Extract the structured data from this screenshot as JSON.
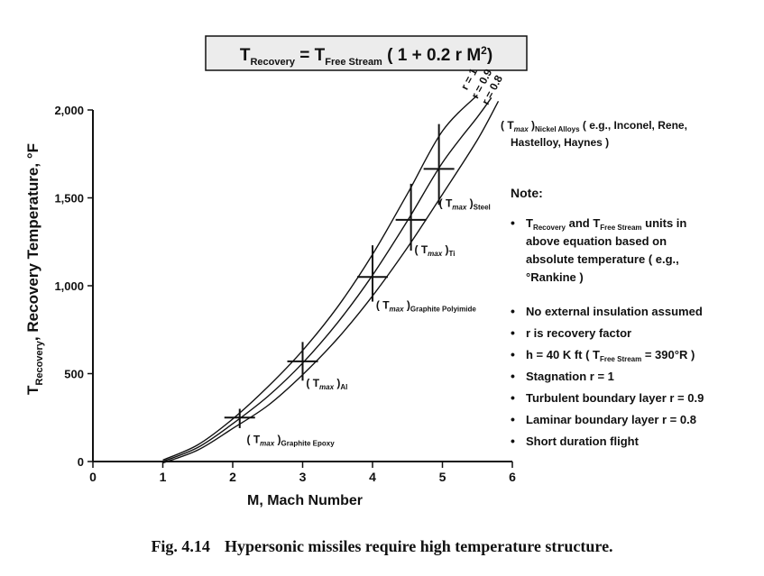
{
  "equation": {
    "lhs": "T",
    "lhs_sub": "Recovery",
    "eq": " = ",
    "rhs": "T",
    "rhs_sub": "Free Stream",
    "tail_a": " ( 1 + 0.2 r M",
    "tail_sup": "2",
    "tail_b": ")"
  },
  "ylabel": {
    "main": "T",
    "sub": "Recovery",
    "rest": ", Recovery Temperature, °F"
  },
  "chart_data": {
    "type": "line",
    "title": "",
    "xlabel": "M, Mach Number",
    "xlim": [
      0,
      6
    ],
    "ylim": [
      0,
      2000
    ],
    "xticks": [
      0,
      1,
      2,
      3,
      4,
      5,
      6
    ],
    "xtick_labels": [
      "0",
      "1",
      "2",
      "3",
      "4",
      "5",
      "6"
    ],
    "yticks": [
      0,
      500,
      1000,
      1500,
      2000
    ],
    "ytick_labels": [
      "0",
      "500",
      "1,000",
      "1,500",
      "2,000"
    ],
    "grid": false,
    "ambient_rankine": 390,
    "series": [
      {
        "name": "r = 1",
        "r": 1.0,
        "x": [
          1,
          1.5,
          2,
          2.5,
          3,
          3.5,
          4,
          4.5,
          5,
          5.5
        ],
        "y": [
          8,
          95,
          242,
          424,
          632,
          880,
          1178,
          1524,
          1880,
          2085
        ]
      },
      {
        "name": "r = 0.9",
        "r": 0.9,
        "x": [
          1,
          1.5,
          2,
          2.5,
          3,
          3.5,
          4,
          4.5,
          5,
          5.5,
          5.7
        ],
        "y": [
          0,
          80,
          215,
          370,
          560,
          790,
          1060,
          1370,
          1700,
          1960,
          2070
        ]
      },
      {
        "name": "r = 0.8",
        "r": 0.8,
        "x": [
          1,
          1.5,
          2,
          2.5,
          3,
          3.5,
          4,
          4.5,
          5,
          5.5,
          5.8
        ],
        "y": [
          -8,
          65,
          188,
          318,
          494,
          700,
          942,
          1218,
          1520,
          1830,
          2050
        ]
      }
    ],
    "markers": [
      {
        "x": 2.1,
        "y": 250,
        "ylo": 190,
        "yhi": 300,
        "label": "( T",
        "sub_max": "max",
        "close": " )",
        "sub": "Graphite Epoxy",
        "lx": 2.2,
        "ly": 105
      },
      {
        "x": 3.0,
        "y": 570,
        "ylo": 460,
        "yhi": 680,
        "label": "( T",
        "sub_max": "max",
        "close": " )",
        "sub": "Al",
        "lx": 3.05,
        "ly": 425
      },
      {
        "x": 4.0,
        "y": 1050,
        "ylo": 910,
        "yhi": 1230,
        "label": "( T",
        "sub_max": "max",
        "close": " )",
        "sub": "Graphite Polyimide",
        "lx": 4.05,
        "ly": 870
      },
      {
        "x": 4.55,
        "y": 1375,
        "ylo": 1200,
        "yhi": 1580,
        "label": "( T",
        "sub_max": "max",
        "close": " )",
        "sub": "Ti",
        "lx": 4.6,
        "ly": 1185
      },
      {
        "x": 4.95,
        "y": 1665,
        "ylo": 1460,
        "yhi": 1920,
        "label": "( T",
        "sub_max": "max",
        "close": " )",
        "sub": "Steel",
        "lx": 4.95,
        "ly": 1450
      }
    ],
    "curve_labels": [
      {
        "text": "r = 1",
        "x": 5.35,
        "y": 2110
      },
      {
        "text": "r = 0.9",
        "x": 5.5,
        "y": 2060
      },
      {
        "text": "r = 0.8",
        "x": 5.65,
        "y": 2025
      }
    ],
    "nickel": {
      "label": "( T",
      "sub_max": "max",
      "close": " )",
      "sub": "Nickel Alloys",
      "text1": " ( e.g., Inconel, Rene,",
      "text2": "Hastelloy, Haynes )"
    }
  },
  "notes": {
    "title": "Note:",
    "items": [
      {
        "lines": [
          "T|Recovery| and T|Free Stream| units in",
          "above equation based on",
          "absolute temperature ( e.g.,",
          "°Rankine )"
        ]
      },
      {
        "lines": [
          "No external insulation assumed"
        ]
      },
      {
        "lines": [
          "r is recovery factor"
        ]
      },
      {
        "lines": [
          "h = 40 K ft ( T|Free Stream| = 390°R )"
        ]
      },
      {
        "lines": [
          "Stagnation r = 1"
        ]
      },
      {
        "lines": [
          "Turbulent boundary layer r = 0.9"
        ]
      },
      {
        "lines": [
          "Laminar boundary layer r = 0.8"
        ]
      },
      {
        "lines": [
          "Short duration flight"
        ]
      }
    ]
  },
  "caption": {
    "num": "Fig. 4.14",
    "text": "Hypersonic missiles require high temperature structure."
  }
}
